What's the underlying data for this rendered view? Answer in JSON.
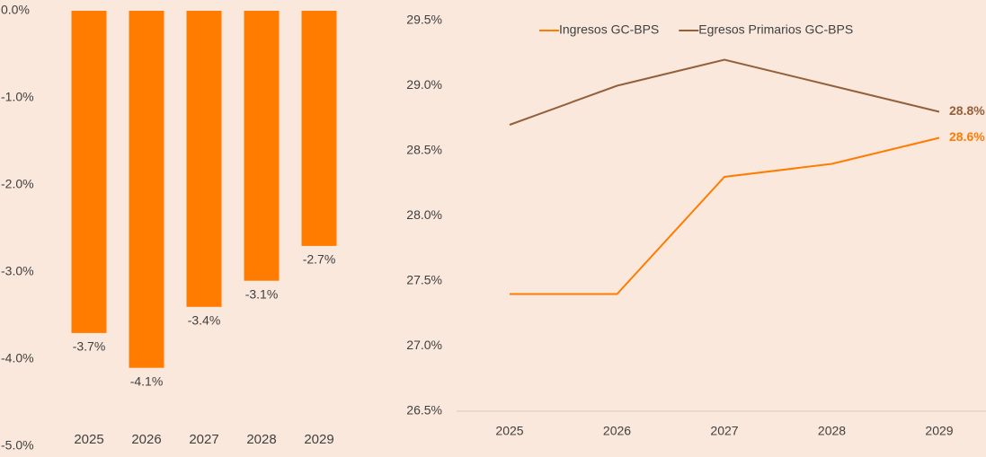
{
  "chart_data": [
    {
      "type": "bar",
      "categories": [
        "2025",
        "2026",
        "2027",
        "2028",
        "2029"
      ],
      "values": [
        -3.7,
        -4.1,
        -3.4,
        -3.1,
        -2.7
      ],
      "value_labels": [
        "-3.7%",
        "-4.1%",
        "-3.4%",
        "-3.1%",
        "-2.7%"
      ],
      "color": "#ff7c00",
      "ylim": [
        -5,
        0
      ],
      "yticks": [
        {
          "value": 0,
          "label": "0.0%"
        },
        {
          "value": -1,
          "label": "-1.0%"
        },
        {
          "value": -2,
          "label": "-2.0%"
        },
        {
          "value": -3,
          "label": "-3.0%"
        },
        {
          "value": -4,
          "label": "-4.0%"
        },
        {
          "value": -5,
          "label": "-5.0%"
        }
      ]
    },
    {
      "type": "line",
      "categories": [
        "2025",
        "2026",
        "2027",
        "2028",
        "2029"
      ],
      "series": [
        {
          "name": "Ingresos GC-BPS",
          "color": "#ff7c00",
          "values": [
            27.4,
            27.4,
            28.3,
            28.4,
            28.6
          ],
          "value_labels": [
            null,
            null,
            null,
            null,
            "28.6%"
          ]
        },
        {
          "name": "Egresos Primarios GC-BPS",
          "color": "#94603a",
          "values": [
            28.7,
            29.0,
            29.2,
            29.0,
            28.8
          ],
          "value_labels": [
            null,
            null,
            null,
            null,
            "28.8%"
          ]
        }
      ],
      "ylim": [
        26.5,
        29.5
      ],
      "yticks": [
        {
          "value": 26.5,
          "label": "26.5%"
        },
        {
          "value": 27.0,
          "label": "27.0%"
        },
        {
          "value": 27.5,
          "label": "27.5%"
        },
        {
          "value": 28.0,
          "label": "28.0%"
        },
        {
          "value": 28.5,
          "label": "28.5%"
        },
        {
          "value": 29.0,
          "label": "29.0%"
        },
        {
          "value": 29.5,
          "label": "29.5%"
        }
      ],
      "legend": "top"
    }
  ]
}
